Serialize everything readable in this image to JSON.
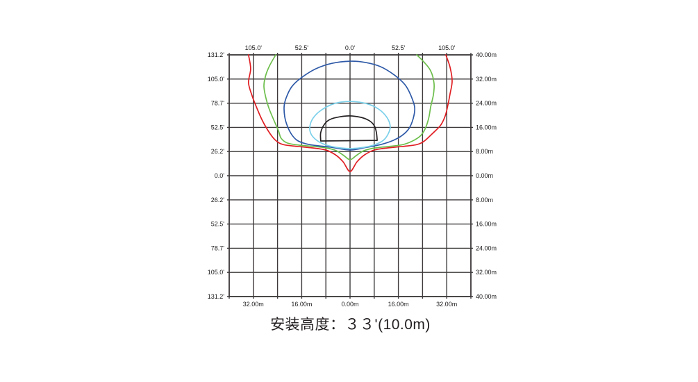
{
  "caption": {
    "text": "安装高度：３３'(10.0m)",
    "mounting_height_feet": "33'",
    "mounting_height_meters": "10.0m"
  },
  "chart_data": {
    "type": "contour",
    "subtype": "isolux-light-distribution",
    "title": "安装高度：３３'(10.0m)",
    "xlabel": "",
    "ylabel": "",
    "grid": "on",
    "grid_color": "#3d393a",
    "border_color": "#3d393a",
    "xlim_m": [
      -40,
      40
    ],
    "ylim_m": [
      -40,
      40
    ],
    "grid_step_m": 8,
    "axes": {
      "top": {
        "unit": "feet",
        "tick_labels": [
          "105.0'",
          "52.5'",
          "0.0'",
          "52.5'",
          "105.0'"
        ],
        "tick_positions_m": [
          -32,
          -16,
          0,
          16,
          32
        ]
      },
      "bottom": {
        "unit": "meters",
        "tick_labels": [
          "32.00m",
          "16.00m",
          "0.00m",
          "16.00m",
          "32.00m"
        ],
        "tick_positions_m": [
          -32,
          -16,
          0,
          16,
          32
        ]
      },
      "left": {
        "unit": "feet",
        "tick_labels": [
          "131.2'",
          "105.0'",
          "78.7'",
          "52.5'",
          "26.2'",
          "0.0'",
          "26.2'",
          "52.5'",
          "78.7'",
          "105.0'",
          "131.2'"
        ],
        "tick_positions_m": [
          40,
          32,
          24,
          16,
          8,
          0,
          -8,
          -16,
          -24,
          -32,
          -40
        ]
      },
      "right": {
        "unit": "meters",
        "tick_labels": [
          "40.00m",
          "32.00m",
          "24.00m",
          "16.00m",
          "8.00m",
          "0.00m",
          "8.00m",
          "16.00m",
          "24.00m",
          "32.00m",
          "40.00m"
        ],
        "tick_positions_m": [
          40,
          32,
          24,
          16,
          8,
          0,
          -8,
          -16,
          -24,
          -32,
          -40
        ]
      }
    },
    "contours": [
      {
        "name": "contour-red-outermost",
        "color": "#e01f24",
        "close": "none",
        "points_m": [
          [
            -33.6,
            40.0
          ],
          [
            -32.9,
            35.4
          ],
          [
            -33.6,
            30.8
          ],
          [
            -32.4,
            26.4
          ],
          [
            -31.0,
            22.8
          ],
          [
            -29.0,
            18.2
          ],
          [
            -26.4,
            13.8
          ],
          [
            -24.4,
            11.5
          ],
          [
            -22.1,
            10.3
          ],
          [
            -17.5,
            9.7
          ],
          [
            -12.4,
            9.2
          ],
          [
            -8.0,
            8.5
          ],
          [
            -4.8,
            6.9
          ],
          [
            -2.3,
            4.6
          ],
          [
            0.0,
            1.4
          ],
          [
            2.3,
            4.6
          ],
          [
            4.8,
            6.9
          ],
          [
            8.0,
            8.5
          ],
          [
            12.4,
            9.2
          ],
          [
            17.5,
            9.7
          ],
          [
            22.1,
            10.3
          ],
          [
            24.6,
            11.5
          ],
          [
            27.1,
            13.8
          ],
          [
            29.9,
            16.6
          ],
          [
            31.5,
            19.8
          ],
          [
            32.4,
            23.4
          ],
          [
            33.1,
            27.1
          ],
          [
            33.8,
            31.3
          ],
          [
            33.1,
            35.9
          ],
          [
            31.7,
            40.0
          ]
        ]
      },
      {
        "name": "contour-green",
        "color": "#6cbe4b",
        "close": "none",
        "points_m": [
          [
            -24.6,
            40.0
          ],
          [
            -26.7,
            36.3
          ],
          [
            -28.0,
            32.9
          ],
          [
            -28.5,
            29.7
          ],
          [
            -28.0,
            26.4
          ],
          [
            -26.9,
            22.5
          ],
          [
            -25.3,
            18.6
          ],
          [
            -23.7,
            14.9
          ],
          [
            -22.8,
            12.4
          ],
          [
            -20.7,
            10.8
          ],
          [
            -16.6,
            10.1
          ],
          [
            -12.0,
            9.7
          ],
          [
            -7.8,
            9.2
          ],
          [
            -4.6,
            8.3
          ],
          [
            -2.1,
            6.7
          ],
          [
            0.0,
            5.3
          ],
          [
            2.1,
            6.7
          ],
          [
            4.6,
            8.3
          ],
          [
            8.3,
            9.2
          ],
          [
            12.9,
            9.7
          ],
          [
            17.5,
            10.3
          ],
          [
            20.7,
            11.5
          ],
          [
            23.2,
            13.1
          ],
          [
            24.8,
            15.4
          ],
          [
            26.0,
            18.9
          ],
          [
            26.7,
            22.8
          ],
          [
            27.6,
            26.9
          ],
          [
            27.8,
            30.6
          ],
          [
            26.7,
            34.7
          ],
          [
            24.4,
            37.7
          ],
          [
            22.1,
            40.0
          ]
        ]
      },
      {
        "name": "contour-blue",
        "color": "#2e59a7",
        "close": "smooth",
        "points_m": [
          [
            0.0,
            37.9
          ],
          [
            -6.0,
            37.2
          ],
          [
            -11.3,
            35.4
          ],
          [
            -15.9,
            32.6
          ],
          [
            -19.1,
            29.7
          ],
          [
            -20.9,
            26.4
          ],
          [
            -21.8,
            23.2
          ],
          [
            -21.6,
            19.5
          ],
          [
            -20.7,
            16.3
          ],
          [
            -19.3,
            13.6
          ],
          [
            -17.5,
            11.7
          ],
          [
            -14.7,
            10.6
          ],
          [
            -10.6,
            9.9
          ],
          [
            -6.0,
            9.4
          ],
          [
            0.0,
            8.5
          ],
          [
            5.5,
            9.4
          ],
          [
            10.1,
            10.3
          ],
          [
            14.3,
            11.7
          ],
          [
            17.2,
            13.3
          ],
          [
            19.5,
            15.6
          ],
          [
            20.9,
            18.9
          ],
          [
            21.4,
            22.5
          ],
          [
            20.2,
            26.4
          ],
          [
            18.2,
            30.1
          ],
          [
            14.7,
            33.3
          ],
          [
            10.1,
            36.1
          ],
          [
            5.1,
            37.5
          ]
        ]
      },
      {
        "name": "contour-cyan",
        "color": "#7bd0ea",
        "close": "smooth",
        "points_m": [
          [
            0.0,
            24.6
          ],
          [
            -5.1,
            23.9
          ],
          [
            -9.4,
            21.8
          ],
          [
            -12.2,
            19.1
          ],
          [
            -13.3,
            16.3
          ],
          [
            -12.9,
            13.8
          ],
          [
            -11.0,
            11.7
          ],
          [
            -8.3,
            10.3
          ],
          [
            -4.6,
            9.4
          ],
          [
            0.0,
            9.0
          ],
          [
            4.6,
            9.4
          ],
          [
            8.3,
            10.3
          ],
          [
            11.0,
            11.7
          ],
          [
            12.6,
            13.8
          ],
          [
            13.3,
            16.3
          ],
          [
            12.2,
            19.3
          ],
          [
            9.4,
            22.1
          ],
          [
            5.3,
            23.9
          ]
        ]
      },
      {
        "name": "contour-black-innermost",
        "color": "#262223",
        "close": "straight",
        "points_m": [
          [
            -9.7,
            11.5
          ],
          [
            -9.7,
            14.3
          ],
          [
            -8.5,
            17.0
          ],
          [
            -6.7,
            18.6
          ],
          [
            -3.4,
            19.5
          ],
          [
            0.0,
            19.8
          ],
          [
            3.7,
            19.3
          ],
          [
            6.4,
            18.2
          ],
          [
            8.0,
            16.6
          ],
          [
            8.7,
            14.5
          ],
          [
            9.0,
            11.7
          ]
        ]
      }
    ]
  }
}
